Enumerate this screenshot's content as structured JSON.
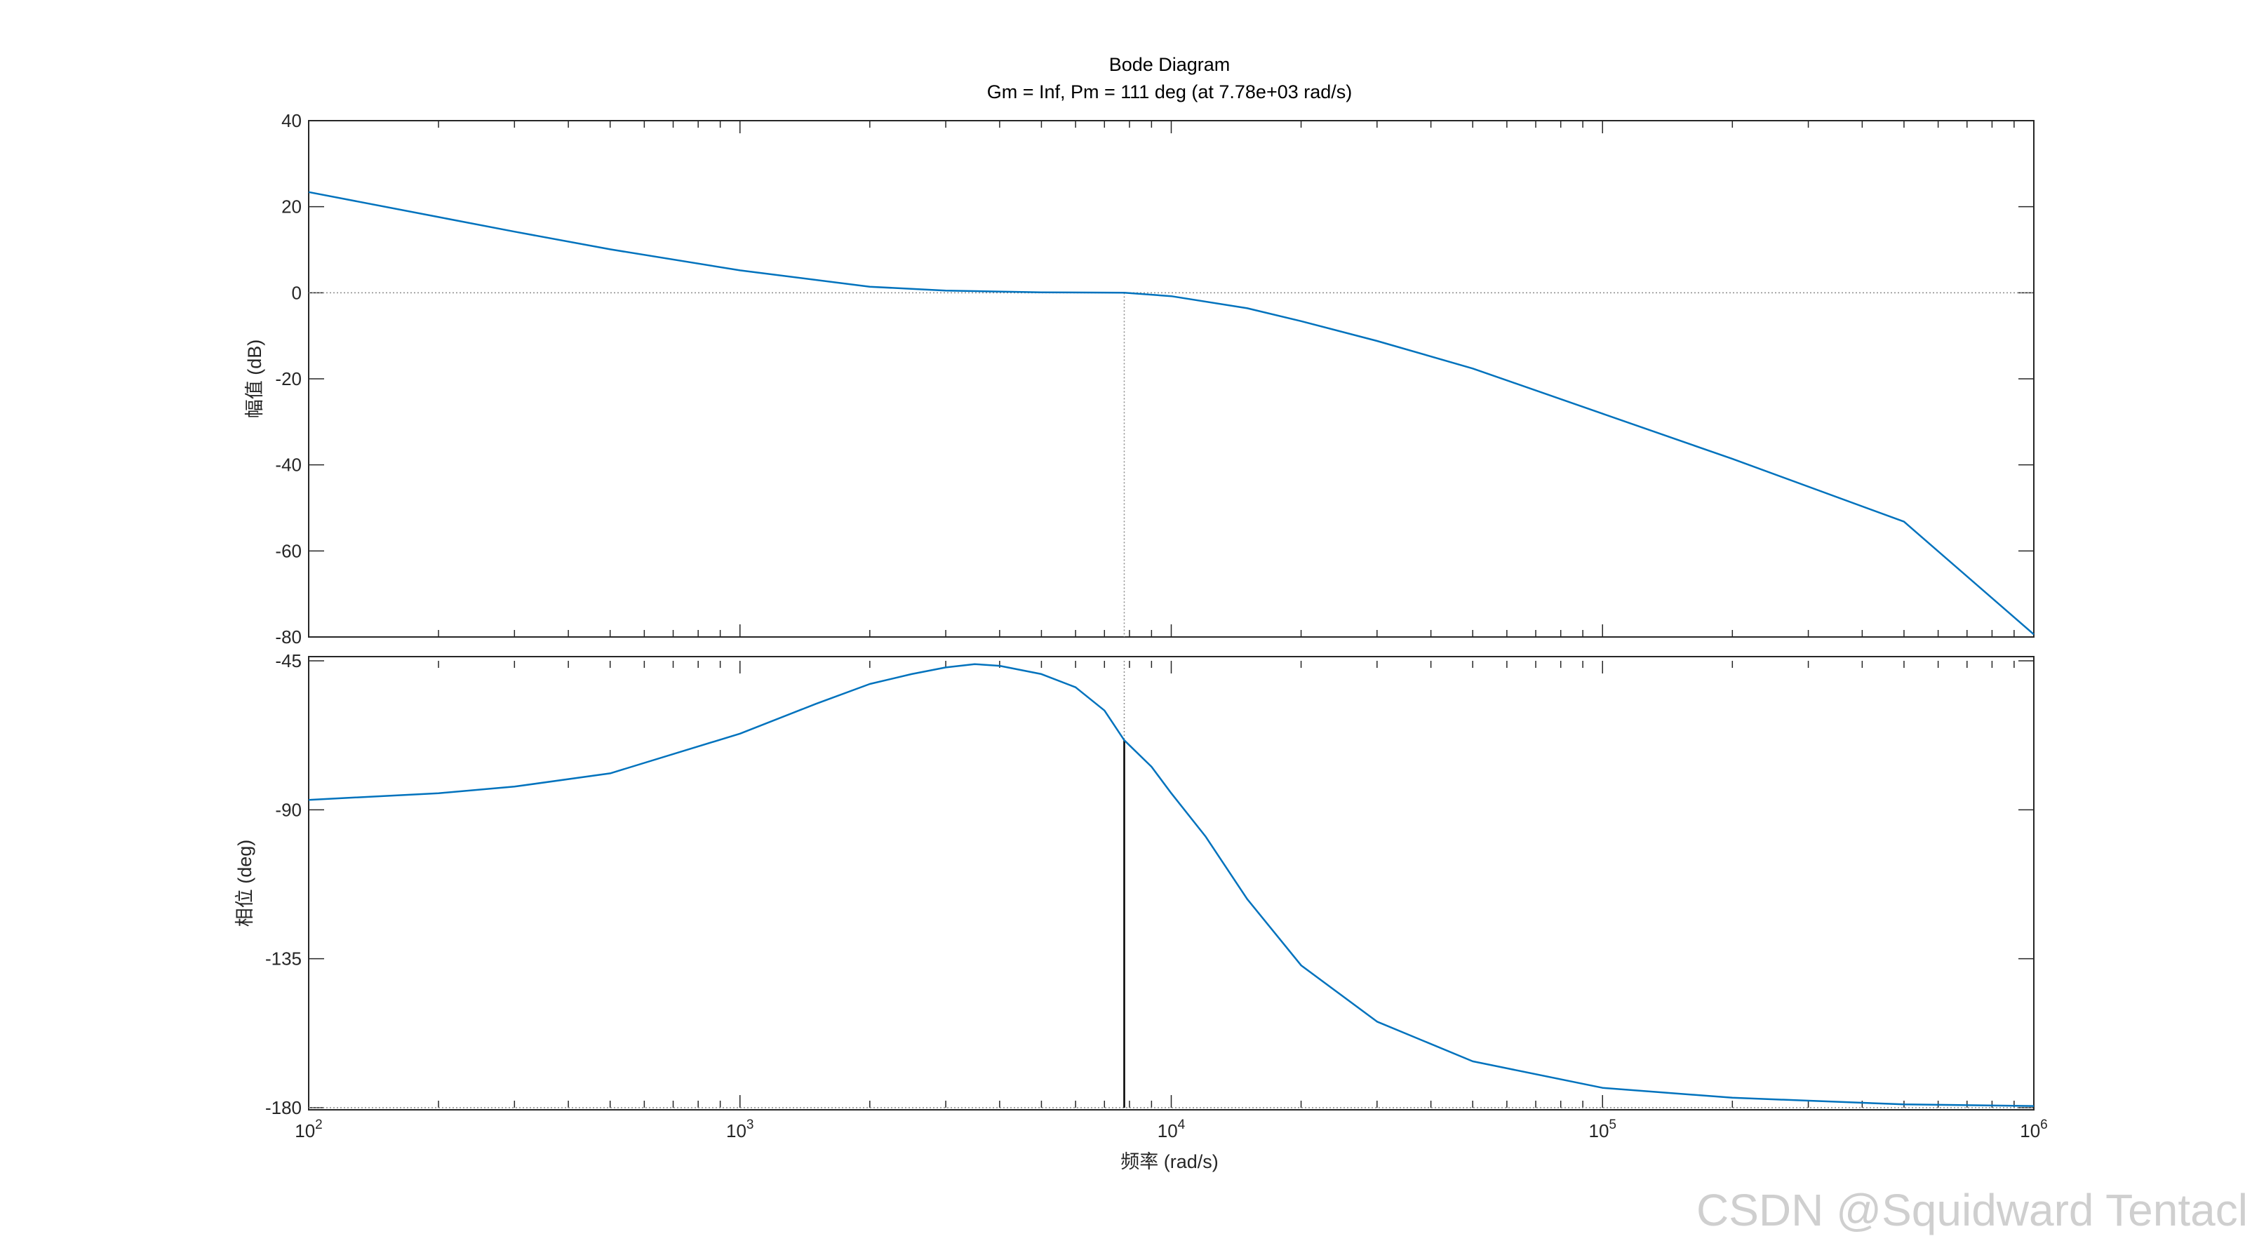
{
  "title": "Bode Diagram",
  "subtitle": "Gm = Inf,  Pm = 111 deg (at 7.78e+03 rad/s)",
  "watermark": "CSDN @Squidward Tentacle",
  "colors": {
    "line": "#0072BD",
    "axes": "#262626",
    "marker": "#000000",
    "guide": "#8c8c8c"
  },
  "chart_data": [
    {
      "type": "line",
      "name": "magnitude",
      "ylabel": "幅值 (dB)",
      "ylim": [
        -80,
        40
      ],
      "yticks": [
        40,
        20,
        0,
        -20,
        -40,
        -60,
        -80
      ],
      "xscale": "log",
      "xlim": [
        100,
        1000000
      ],
      "grid": false,
      "reference_line_y": 0,
      "crossover_frequency": 7780,
      "x": [
        100,
        200,
        300,
        500,
        1000,
        2000,
        3000,
        5000,
        7780,
        10000,
        15000,
        20000,
        30000,
        50000,
        100000,
        200000,
        500000,
        1000000
      ],
      "y": [
        23.4,
        17.6,
        14.2,
        10.1,
        5.2,
        1.4,
        0.5,
        0.1,
        0.0,
        -0.8,
        -3.6,
        -6.6,
        -11.2,
        -17.6,
        -28.1,
        -38.6,
        -53.2,
        -79.4
      ]
    },
    {
      "type": "line",
      "name": "phase",
      "xlabel": "频率  (rad/s)",
      "ylabel": "相位 (deg)",
      "ylim": [
        -180,
        -45
      ],
      "yticks": [
        -45,
        -90,
        -135,
        -180
      ],
      "xscale": "log",
      "xlim": [
        100,
        1000000
      ],
      "xticks": [
        {
          "base": "10",
          "exp": "2"
        },
        {
          "base": "10",
          "exp": "3"
        },
        {
          "base": "10",
          "exp": "4"
        },
        {
          "base": "10",
          "exp": "5"
        },
        {
          "base": "10",
          "exp": "6"
        }
      ],
      "grid": false,
      "reference_line_y": -180,
      "crossover_frequency": 7780,
      "phase_at_crossover": -69,
      "x": [
        100,
        200,
        300,
        500,
        1000,
        1500,
        2000,
        2500,
        3000,
        3500,
        4000,
        5000,
        6000,
        7000,
        7780,
        9000,
        10000,
        12000,
        15000,
        20000,
        30000,
        50000,
        100000,
        200000,
        500000,
        1000000
      ],
      "y": [
        -87,
        -85,
        -83,
        -79,
        -67,
        -58,
        -52,
        -49,
        -47,
        -46,
        -46.5,
        -49,
        -53,
        -60,
        -69,
        -77,
        -85,
        -98,
        -117,
        -137,
        -154,
        -166,
        -174,
        -177,
        -179,
        -179.5
      ]
    }
  ]
}
